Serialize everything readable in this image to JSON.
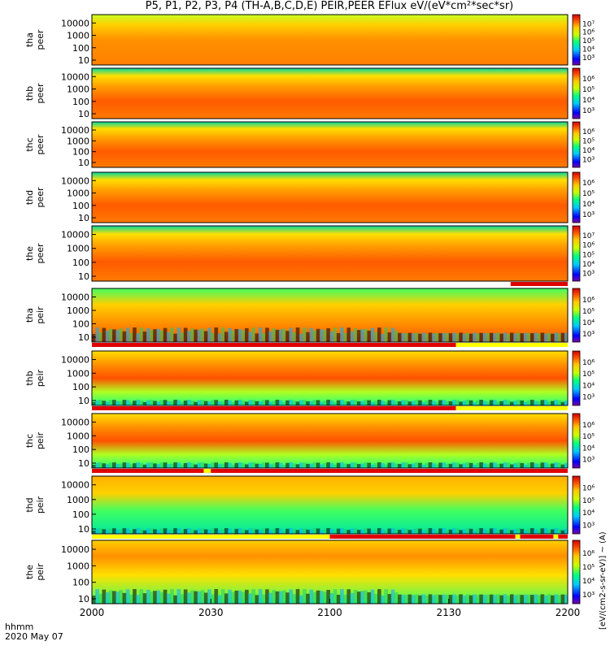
{
  "title": "P5, P1, P2, P3, P4 (TH-A,B,C,D,E) PEIR,PEER EFlux eV/(eV*cm²*sec*sr)",
  "time_axis": {
    "row_label": "hhmm",
    "date": "2020 May 07",
    "ticks": [
      "2000",
      "2030",
      "2100",
      "2130",
      "2200"
    ]
  },
  "colorbar_label": "[eV/(cm2-s-sr-eV)] ~ (A)",
  "chart_data": [
    {
      "type": "heatmap",
      "probe": "tha",
      "product": "peer",
      "yticks": [
        "10",
        "100",
        "1000",
        "10000"
      ],
      "colorbar": [
        "10³",
        "10⁴",
        "10⁵",
        "10⁶",
        "10⁷"
      ],
      "mode_bar": []
    },
    {
      "type": "heatmap",
      "probe": "thb",
      "product": "peer",
      "yticks": [
        "10",
        "100",
        "1000",
        "10000"
      ],
      "colorbar": [
        "10³",
        "10⁴",
        "10⁵",
        "10⁶"
      ],
      "mode_bar": []
    },
    {
      "type": "heatmap",
      "probe": "thc",
      "product": "peer",
      "yticks": [
        "10",
        "100",
        "1000",
        "10000"
      ],
      "colorbar": [
        "10³",
        "10⁴",
        "10⁵",
        "10⁶"
      ],
      "mode_bar": []
    },
    {
      "type": "heatmap",
      "probe": "thd",
      "product": "peer",
      "yticks": [
        "10",
        "100",
        "1000",
        "10000"
      ],
      "colorbar": [
        "10³",
        "10⁴",
        "10⁵",
        "10⁶"
      ],
      "mode_bar": []
    },
    {
      "type": "heatmap",
      "probe": "the",
      "product": "peer",
      "yticks": [
        "10",
        "100",
        "1000",
        "10000"
      ],
      "colorbar": [
        "10³",
        "10⁴",
        "10⁵",
        "10⁶",
        "10⁷"
      ],
      "mode_bar": [
        {
          "from": 0,
          "to": 0.88,
          "color": "#ffffff"
        },
        {
          "from": 0.88,
          "to": 1,
          "color": "#e00000"
        }
      ]
    },
    {
      "type": "heatmap",
      "probe": "tha",
      "product": "peir",
      "yticks": [
        "10",
        "100",
        "1000",
        "10000"
      ],
      "colorbar": [
        "10³",
        "10⁴",
        "10⁵",
        "10⁶"
      ],
      "mode_bar": [
        {
          "from": 0,
          "to": 0.765,
          "color": "#e00000"
        },
        {
          "from": 0.765,
          "to": 1,
          "color": "#ffff00"
        }
      ]
    },
    {
      "type": "heatmap",
      "probe": "thb",
      "product": "peir",
      "yticks": [
        "10",
        "100",
        "1000",
        "10000"
      ],
      "colorbar": [
        "10³",
        "10⁴",
        "10⁵",
        "10⁶"
      ],
      "mode_bar": [
        {
          "from": 0,
          "to": 0.765,
          "color": "#e00000"
        },
        {
          "from": 0.765,
          "to": 1,
          "color": "#ffff00"
        }
      ]
    },
    {
      "type": "heatmap",
      "probe": "thc",
      "product": "peir",
      "yticks": [
        "10",
        "100",
        "1000",
        "10000"
      ],
      "colorbar": [
        "10³",
        "10⁴",
        "10⁵",
        "10⁶"
      ],
      "mode_bar": [
        {
          "from": 0,
          "to": 0.235,
          "color": "#e00000"
        },
        {
          "from": 0.235,
          "to": 0.25,
          "color": "#ffff00"
        },
        {
          "from": 0.25,
          "to": 1,
          "color": "#e00000"
        }
      ]
    },
    {
      "type": "heatmap",
      "probe": "thd",
      "product": "peir",
      "yticks": [
        "10",
        "100",
        "1000",
        "10000"
      ],
      "colorbar": [
        "10³",
        "10⁴",
        "10⁵",
        "10⁶"
      ],
      "mode_bar": [
        {
          "from": 0,
          "to": 0.5,
          "color": "#ffff00"
        },
        {
          "from": 0.5,
          "to": 0.89,
          "color": "#e00000"
        },
        {
          "from": 0.89,
          "to": 0.9,
          "color": "#ffff00"
        },
        {
          "from": 0.9,
          "to": 0.97,
          "color": "#e00000"
        },
        {
          "from": 0.97,
          "to": 0.98,
          "color": "#ffff00"
        },
        {
          "from": 0.98,
          "to": 1,
          "color": "#e00000"
        }
      ]
    },
    {
      "type": "heatmap",
      "probe": "the",
      "product": "peir",
      "yticks": [
        "10",
        "100",
        "1000",
        "10000"
      ],
      "colorbar": [
        "10³",
        "10⁴",
        "10⁵",
        "10⁶"
      ],
      "mode_bar": []
    }
  ]
}
